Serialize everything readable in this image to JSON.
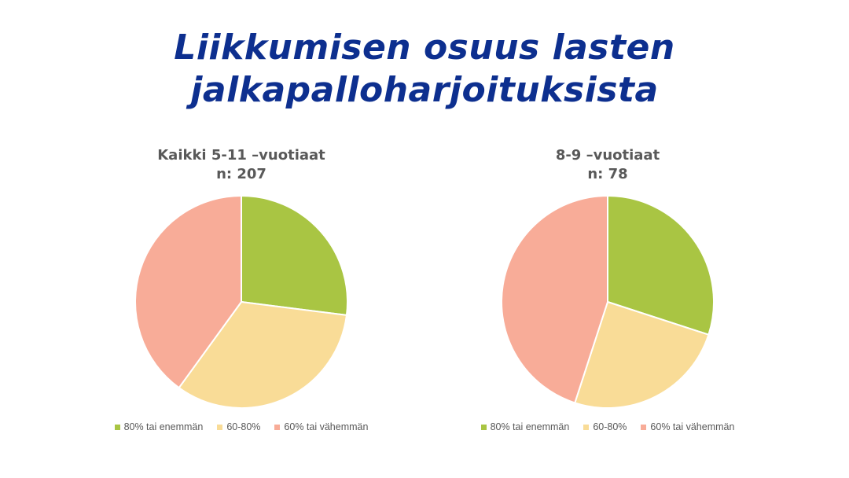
{
  "title_lines": [
    "Liikkumisen osuus lasten",
    "jalkapalloharjoituksista"
  ],
  "colors": {
    "title": "#0d2f8f",
    "series": [
      "#a9c543",
      "#f9dc97",
      "#f8ac98"
    ]
  },
  "chart_data": [
    {
      "type": "pie",
      "title_lines": [
        "Kaikki 5-11 –vuotiaat",
        "n: 207"
      ],
      "categories": [
        "80% tai enemmän",
        "60-80%",
        "60% tai vähemmän"
      ],
      "values": [
        27,
        33,
        40
      ],
      "legend_position": "bottom"
    },
    {
      "type": "pie",
      "title_lines": [
        "8-9 –vuotiaat",
        "n: 78"
      ],
      "categories": [
        "80% tai enemmän",
        "60-80%",
        "60% tai vähemmän"
      ],
      "values": [
        30,
        25,
        45
      ],
      "legend_position": "bottom"
    }
  ]
}
